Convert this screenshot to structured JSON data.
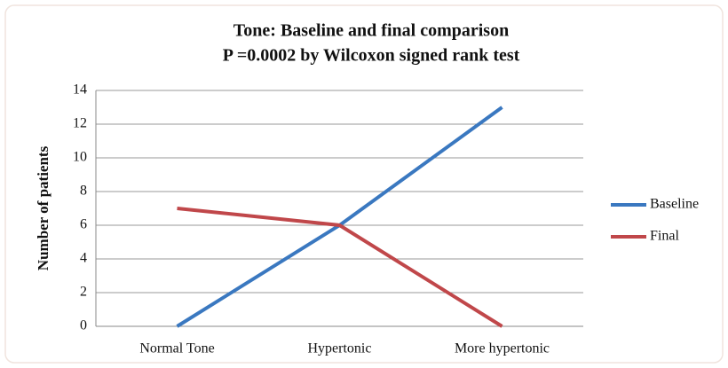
{
  "chart_data": {
    "type": "line",
    "title": "Tone: Baseline and final comparison",
    "subtitle": "P =0.0002 by Wilcoxon signed rank test",
    "y_label": "Number of patients",
    "categories": [
      "Normal Tone",
      "Hypertonic",
      "More hypertonic"
    ],
    "series": [
      {
        "name": "Baseline",
        "color": "#3a78c0",
        "values": [
          0,
          6,
          13
        ]
      },
      {
        "name": "Final",
        "color": "#c0474a",
        "values": [
          7,
          6,
          0
        ]
      }
    ],
    "ylim": [
      0,
      14
    ],
    "yticks": [
      0,
      2,
      4,
      6,
      8,
      10,
      12,
      14
    ],
    "grid": true,
    "legend": "right"
  }
}
